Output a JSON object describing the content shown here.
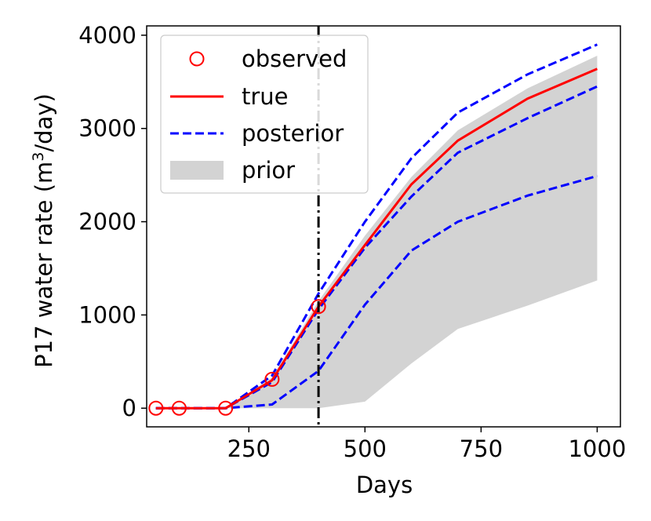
{
  "chart_data": {
    "type": "line",
    "xlabel": "Days",
    "ylabel": "P17 water rate (m",
    "ylabel_sup": "3",
    "ylabel_tail": "/day)",
    "xlim": [
      30,
      1050
    ],
    "ylim": [
      -200,
      4100
    ],
    "xticks": [
      250,
      500,
      750,
      1000
    ],
    "yticks": [
      0,
      1000,
      2000,
      3000,
      4000
    ],
    "vline_x": 400,
    "colors": {
      "observed": "#ff0000",
      "true": "#ff0000",
      "posterior": "#0000ff",
      "prior": "#d3d3d3",
      "vline": "#000000"
    },
    "legend": {
      "position": "upper-left",
      "entries": [
        {
          "key": "observed",
          "label": "observed"
        },
        {
          "key": "true",
          "label": "true"
        },
        {
          "key": "posterior",
          "label": "posterior"
        },
        {
          "key": "prior",
          "label": "prior"
        }
      ]
    },
    "observed": {
      "x": [
        50,
        100,
        200,
        300,
        400
      ],
      "y": [
        0,
        0,
        0,
        310,
        1090
      ]
    },
    "true": {
      "x": [
        50,
        100,
        200,
        300,
        400,
        500,
        600,
        700,
        850,
        1000
      ],
      "y": [
        0,
        0,
        0,
        300,
        1090,
        1750,
        2400,
        2870,
        3320,
        3640
      ]
    },
    "posterior": [
      {
        "name": "upper",
        "x": [
          50,
          100,
          200,
          300,
          400,
          500,
          600,
          700,
          850,
          1000
        ],
        "y": [
          0,
          0,
          0,
          350,
          1230,
          2000,
          2680,
          3170,
          3580,
          3900
        ]
      },
      {
        "name": "middle",
        "x": [
          50,
          100,
          200,
          300,
          400,
          500,
          600,
          700,
          850,
          1000
        ],
        "y": [
          0,
          0,
          0,
          280,
          1060,
          1720,
          2270,
          2740,
          3110,
          3450
        ]
      },
      {
        "name": "lower",
        "x": [
          50,
          100,
          200,
          300,
          400,
          500,
          600,
          700,
          850,
          1000
        ],
        "y": [
          0,
          0,
          0,
          40,
          400,
          1110,
          1690,
          2000,
          2280,
          2490
        ]
      }
    ],
    "prior": {
      "x": [
        50,
        100,
        200,
        300,
        400,
        500,
        600,
        700,
        850,
        1000
      ],
      "upper": [
        0,
        0,
        0,
        330,
        1150,
        1850,
        2480,
        2980,
        3430,
        3780
      ],
      "lower": [
        0,
        0,
        0,
        0,
        0,
        70,
        480,
        850,
        1100,
        1370
      ]
    }
  }
}
